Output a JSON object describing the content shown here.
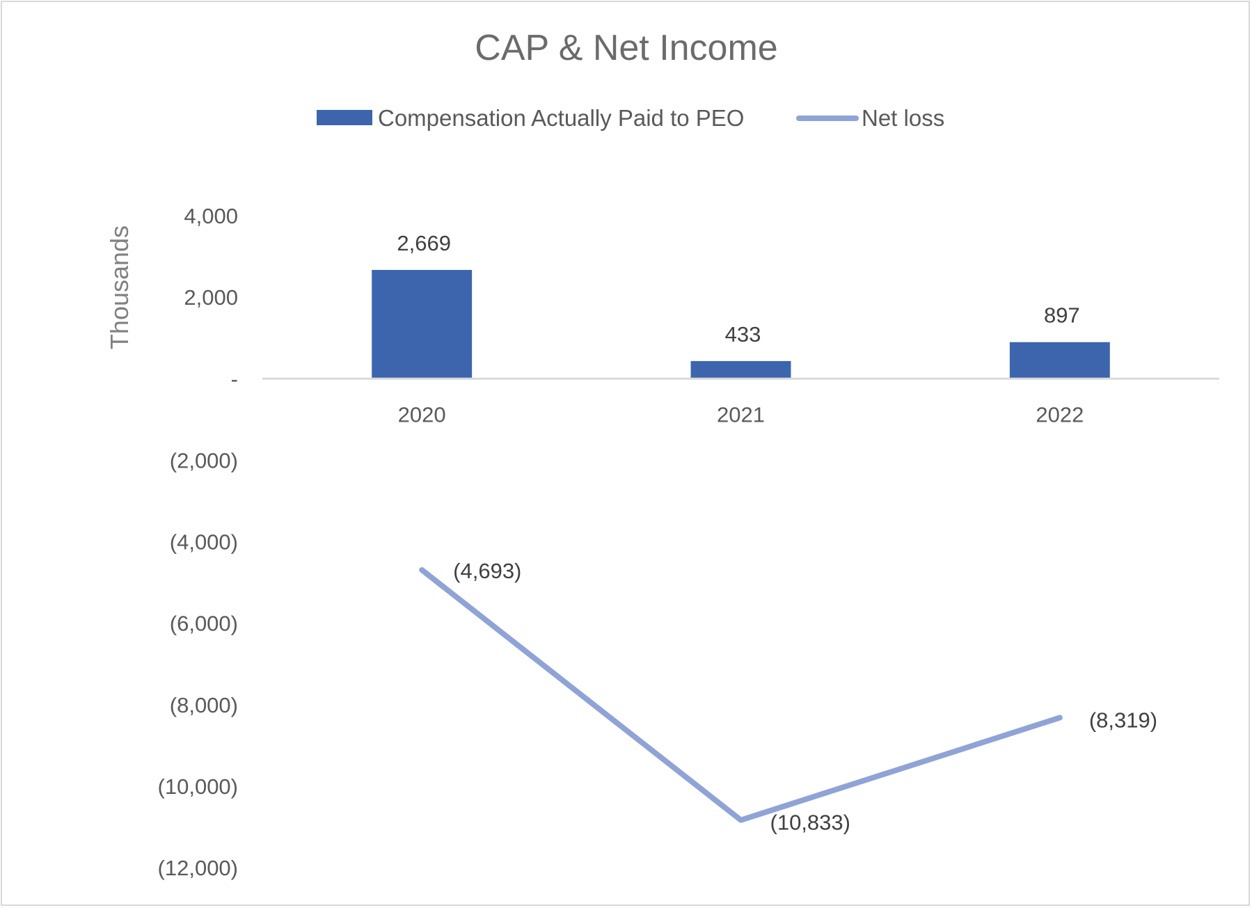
{
  "chart_data": {
    "type": "bar",
    "title": "CAP & Net Income",
    "ylabel": "Thousands",
    "xlabel": "",
    "categories": [
      "2020",
      "2021",
      "2022"
    ],
    "ylim": [
      -12000,
      4000
    ],
    "yticks": [
      4000,
      2000,
      0,
      -2000,
      -4000,
      -6000,
      -8000,
      -10000,
      -12000
    ],
    "ytick_labels": [
      "4,000",
      "2,000",
      "-",
      "(2,000)",
      "(4,000)",
      "(6,000)",
      "(8,000)",
      "(10,000)",
      "(12,000)"
    ],
    "grid": false,
    "legend_position": "top",
    "series": [
      {
        "name": "Compensation Actually Paid to PEO",
        "type": "bar",
        "color": "#3d65ae",
        "values": [
          2669,
          433,
          897
        ],
        "labels": [
          "2,669",
          "433",
          "897"
        ]
      },
      {
        "name": "Net loss",
        "type": "line",
        "color": "#8fa3d6",
        "values": [
          -4693,
          -10833,
          -8319
        ],
        "labels": [
          "(4,693)",
          "(10,833)",
          "(8,319)"
        ]
      }
    ]
  }
}
